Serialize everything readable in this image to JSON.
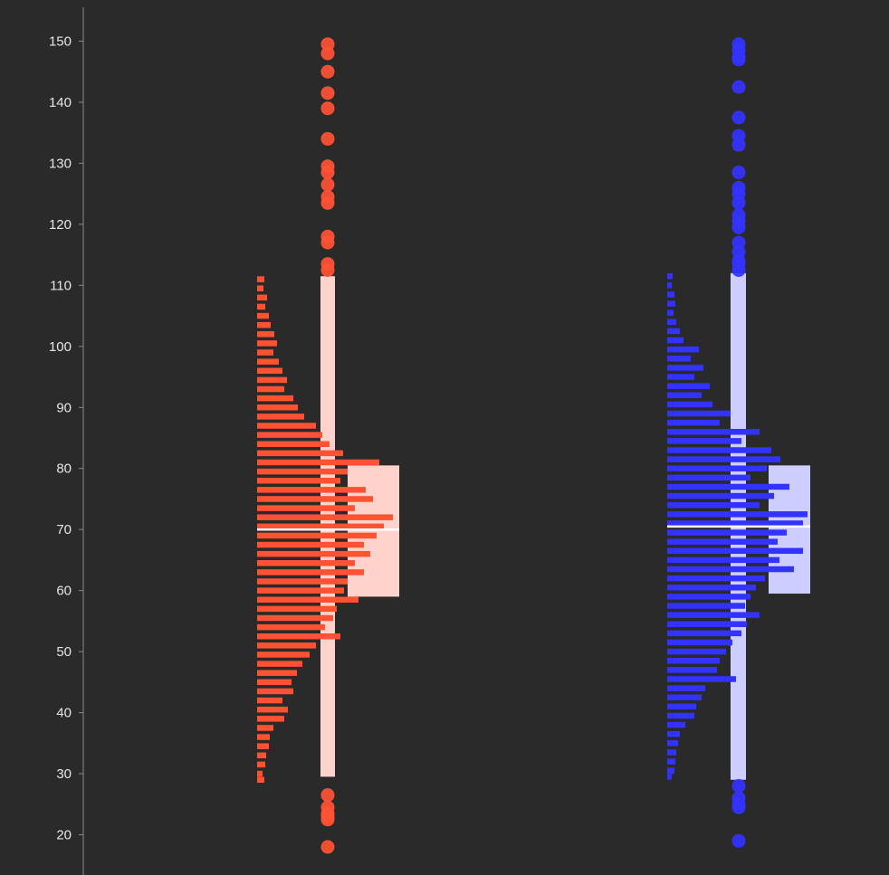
{
  "chart_data": {
    "type": "violin-box-histogram",
    "title": "",
    "xlabel": "",
    "ylabel": "",
    "ylim": [
      15,
      155
    ],
    "yticks": [
      20,
      30,
      40,
      50,
      60,
      70,
      80,
      90,
      100,
      110,
      120,
      130,
      140,
      150
    ],
    "grid": false,
    "series": [
      {
        "color": "#ff5233",
        "box_color": "#ffd3cc",
        "q1": 59,
        "median": 70,
        "q3": 80.5,
        "whisker_low": 29.5,
        "whisker_high": 111.5,
        "outliers": [
          149.5,
          148,
          145,
          141.5,
          139,
          134,
          129.5,
          128.5,
          126.5,
          124.5,
          123.5,
          118,
          117,
          113.5,
          112.5,
          26.5,
          24.5,
          23.5,
          23,
          22.5,
          18
        ],
        "hist_bins": [
          {
            "y": 111,
            "v": 8
          },
          {
            "y": 109.5,
            "v": 7
          },
          {
            "y": 108,
            "v": 11
          },
          {
            "y": 106.5,
            "v": 9
          },
          {
            "y": 105,
            "v": 13
          },
          {
            "y": 103.5,
            "v": 15
          },
          {
            "y": 102,
            "v": 19
          },
          {
            "y": 100.5,
            "v": 22
          },
          {
            "y": 99,
            "v": 18
          },
          {
            "y": 97.5,
            "v": 24
          },
          {
            "y": 96,
            "v": 28
          },
          {
            "y": 94.5,
            "v": 33
          },
          {
            "y": 93,
            "v": 30
          },
          {
            "y": 91.5,
            "v": 40
          },
          {
            "y": 90,
            "v": 45
          },
          {
            "y": 88.5,
            "v": 52
          },
          {
            "y": 87,
            "v": 65
          },
          {
            "y": 85.5,
            "v": 72
          },
          {
            "y": 84,
            "v": 80
          },
          {
            "y": 82.5,
            "v": 95
          },
          {
            "y": 81,
            "v": 135
          },
          {
            "y": 79.5,
            "v": 100
          },
          {
            "y": 78,
            "v": 92
          },
          {
            "y": 76.5,
            "v": 120
          },
          {
            "y": 75,
            "v": 128
          },
          {
            "y": 73.5,
            "v": 108
          },
          {
            "y": 72,
            "v": 150
          },
          {
            "y": 70.5,
            "v": 140
          },
          {
            "y": 69,
            "v": 132
          },
          {
            "y": 67.5,
            "v": 118
          },
          {
            "y": 66,
            "v": 125
          },
          {
            "y": 64.5,
            "v": 108
          },
          {
            "y": 63,
            "v": 118
          },
          {
            "y": 61.5,
            "v": 100
          },
          {
            "y": 60,
            "v": 96
          },
          {
            "y": 58.5,
            "v": 112
          },
          {
            "y": 57,
            "v": 88
          },
          {
            "y": 55.5,
            "v": 84
          },
          {
            "y": 54,
            "v": 75
          },
          {
            "y": 52.5,
            "v": 92
          },
          {
            "y": 51,
            "v": 65
          },
          {
            "y": 49.5,
            "v": 58
          },
          {
            "y": 48,
            "v": 50
          },
          {
            "y": 46.5,
            "v": 44
          },
          {
            "y": 45,
            "v": 38
          },
          {
            "y": 43.5,
            "v": 40
          },
          {
            "y": 42,
            "v": 28
          },
          {
            "y": 40.5,
            "v": 34
          },
          {
            "y": 39,
            "v": 30
          },
          {
            "y": 37.5,
            "v": 18
          },
          {
            "y": 36,
            "v": 14
          },
          {
            "y": 34.5,
            "v": 13
          },
          {
            "y": 33,
            "v": 10
          },
          {
            "y": 31.5,
            "v": 9
          },
          {
            "y": 30,
            "v": 6
          },
          {
            "y": 29,
            "v": 8
          }
        ]
      },
      {
        "color": "#3333ff",
        "box_color": "#cdcdff",
        "q1": 59.5,
        "median": 70.5,
        "q3": 80.5,
        "whisker_low": 29,
        "whisker_high": 112,
        "outliers": [
          149.5,
          148.5,
          147.5,
          147,
          142.5,
          137.5,
          134.5,
          133,
          128.5,
          126,
          125,
          123.5,
          121.5,
          120.5,
          119.5,
          117,
          115.5,
          114,
          113.5,
          112.5,
          28,
          26,
          25,
          24.5,
          19
        ],
        "hist_bins": [
          {
            "y": 111.5,
            "v": 6
          },
          {
            "y": 110,
            "v": 5
          },
          {
            "y": 108.5,
            "v": 8
          },
          {
            "y": 107,
            "v": 9
          },
          {
            "y": 105.5,
            "v": 7
          },
          {
            "y": 104,
            "v": 10
          },
          {
            "y": 102.5,
            "v": 14
          },
          {
            "y": 101,
            "v": 18
          },
          {
            "y": 99.5,
            "v": 35
          },
          {
            "y": 98,
            "v": 26
          },
          {
            "y": 96.5,
            "v": 40
          },
          {
            "y": 95,
            "v": 30
          },
          {
            "y": 93.5,
            "v": 47
          },
          {
            "y": 92,
            "v": 38
          },
          {
            "y": 90.5,
            "v": 50
          },
          {
            "y": 89,
            "v": 70
          },
          {
            "y": 87.5,
            "v": 58
          },
          {
            "y": 86,
            "v": 102
          },
          {
            "y": 84.5,
            "v": 82
          },
          {
            "y": 83,
            "v": 115
          },
          {
            "y": 81.5,
            "v": 125
          },
          {
            "y": 80,
            "v": 110
          },
          {
            "y": 78.5,
            "v": 92
          },
          {
            "y": 77,
            "v": 135
          },
          {
            "y": 75.5,
            "v": 118
          },
          {
            "y": 74,
            "v": 102
          },
          {
            "y": 72.5,
            "v": 155
          },
          {
            "y": 71,
            "v": 150
          },
          {
            "y": 69.5,
            "v": 132
          },
          {
            "y": 68,
            "v": 122
          },
          {
            "y": 66.5,
            "v": 150
          },
          {
            "y": 65,
            "v": 124
          },
          {
            "y": 63.5,
            "v": 140
          },
          {
            "y": 62,
            "v": 108
          },
          {
            "y": 60.5,
            "v": 98
          },
          {
            "y": 59,
            "v": 92
          },
          {
            "y": 57.5,
            "v": 86
          },
          {
            "y": 56,
            "v": 102
          },
          {
            "y": 54.5,
            "v": 88
          },
          {
            "y": 53,
            "v": 82
          },
          {
            "y": 51.5,
            "v": 72
          },
          {
            "y": 50,
            "v": 65
          },
          {
            "y": 48.5,
            "v": 58
          },
          {
            "y": 47,
            "v": 55
          },
          {
            "y": 45.5,
            "v": 76
          },
          {
            "y": 44,
            "v": 42
          },
          {
            "y": 42.5,
            "v": 38
          },
          {
            "y": 41,
            "v": 32
          },
          {
            "y": 39.5,
            "v": 30
          },
          {
            "y": 38,
            "v": 20
          },
          {
            "y": 36.5,
            "v": 14
          },
          {
            "y": 35,
            "v": 12
          },
          {
            "y": 33.5,
            "v": 10
          },
          {
            "y": 32,
            "v": 9
          },
          {
            "y": 30.5,
            "v": 8
          },
          {
            "y": 29.5,
            "v": 5
          }
        ]
      }
    ]
  }
}
